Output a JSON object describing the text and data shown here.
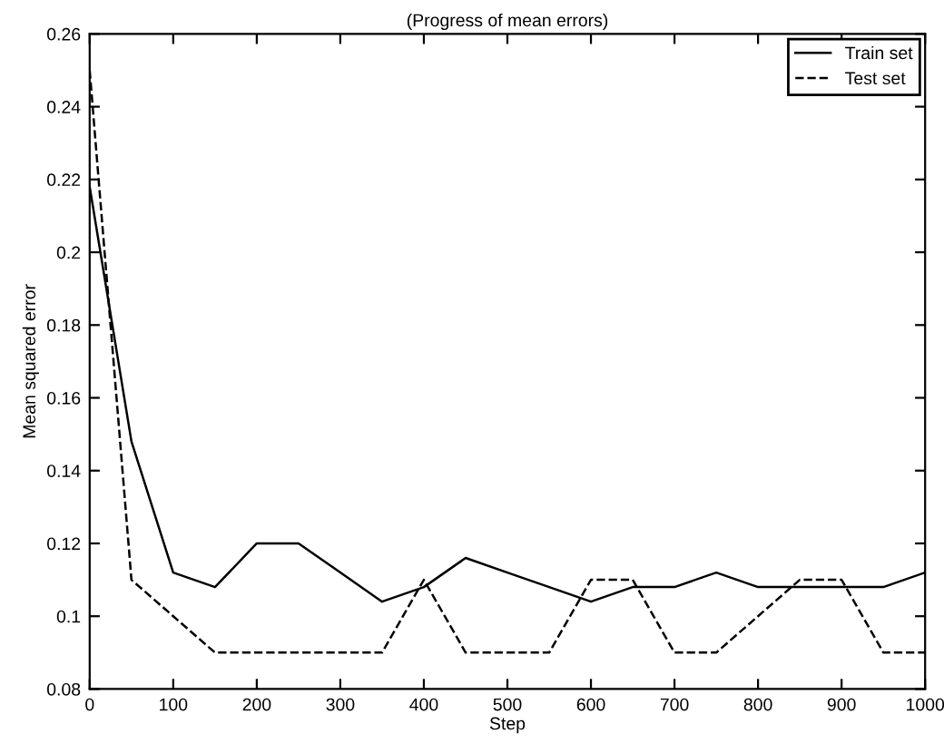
{
  "chart_data": {
    "type": "line",
    "title": "(Progress of mean errors)",
    "xlabel": "Step",
    "ylabel": "Mean squared error",
    "x": [
      0,
      50,
      100,
      150,
      200,
      250,
      300,
      350,
      400,
      450,
      500,
      550,
      600,
      650,
      700,
      750,
      800,
      850,
      900,
      950,
      1000
    ],
    "series": [
      {
        "name": "Train set",
        "color": "#000000",
        "line_style": "solid",
        "values": [
          0.218,
          0.148,
          0.112,
          0.108,
          0.12,
          0.12,
          0.112,
          0.104,
          0.108,
          0.116,
          0.112,
          0.108,
          0.104,
          0.108,
          0.108,
          0.112,
          0.108,
          0.108,
          0.108,
          0.108,
          0.112
        ]
      },
      {
        "name": "Test set",
        "color": "#000000",
        "line_style": "dashed",
        "values": [
          0.25,
          0.11,
          0.1,
          0.09,
          0.09,
          0.09,
          0.09,
          0.09,
          0.11,
          0.09,
          0.09,
          0.09,
          0.11,
          0.11,
          0.09,
          0.09,
          0.1,
          0.11,
          0.11,
          0.09,
          0.09
        ]
      }
    ],
    "xlim": [
      0,
      1000
    ],
    "xticks": [
      0,
      100,
      200,
      300,
      400,
      500,
      600,
      700,
      800,
      900,
      1000
    ],
    "ylim": [
      0.08,
      0.26
    ],
    "yticks": [
      0.08,
      0.1,
      0.12,
      0.14,
      0.16,
      0.18,
      0.2,
      0.22,
      0.24,
      0.26
    ],
    "grid": false,
    "legend": "top right"
  }
}
